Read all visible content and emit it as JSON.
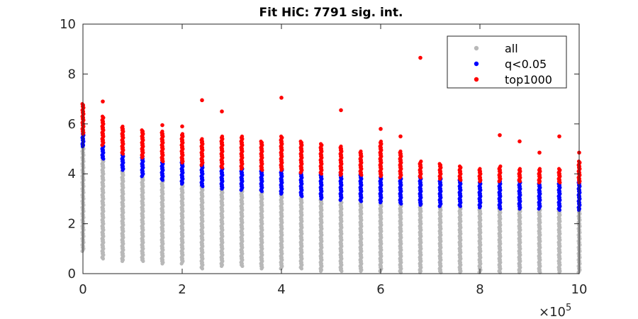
{
  "chart_data": {
    "type": "scatter",
    "title": "Fit HiC: 7791 sig. int.",
    "xlabel": "",
    "ylabel": "",
    "xlim": [
      0,
      1000000
    ],
    "ylim": [
      0,
      10
    ],
    "x_ticks": [
      0,
      200000,
      400000,
      600000,
      800000,
      1000000
    ],
    "x_tick_labels": [
      "0",
      "2",
      "4",
      "6",
      "8",
      "10"
    ],
    "y_ticks": [
      0,
      2,
      4,
      6,
      8,
      10
    ],
    "y_tick_labels": [
      "0",
      "2",
      "4",
      "6",
      "8",
      "10"
    ],
    "x_multiplier_base": "×10",
    "x_multiplier_exp": "5",
    "grid": false,
    "legend_position": "top-right",
    "series": [
      {
        "name": "all",
        "color": "#b8b8b8",
        "columns": [
          {
            "x": 0,
            "ymin": 0.9,
            "ymax": 5.2
          },
          {
            "x": 40000,
            "ymin": 0.6,
            "ymax": 4.6
          },
          {
            "x": 80000,
            "ymin": 0.5,
            "ymax": 4.2
          },
          {
            "x": 120000,
            "ymin": 0.5,
            "ymax": 3.9
          },
          {
            "x": 160000,
            "ymin": 0.4,
            "ymax": 3.8
          },
          {
            "x": 200000,
            "ymin": 0.4,
            "ymax": 3.6
          },
          {
            "x": 240000,
            "ymin": 0.2,
            "ymax": 3.5
          },
          {
            "x": 280000,
            "ymin": 0.3,
            "ymax": 3.4
          },
          {
            "x": 320000,
            "ymin": 0.3,
            "ymax": 3.4
          },
          {
            "x": 360000,
            "ymin": 0.2,
            "ymax": 3.3
          },
          {
            "x": 400000,
            "ymin": 0.2,
            "ymax": 3.2
          },
          {
            "x": 440000,
            "ymin": 0.2,
            "ymax": 3.1
          },
          {
            "x": 480000,
            "ymin": 0.1,
            "ymax": 3.0
          },
          {
            "x": 520000,
            "ymin": 0.1,
            "ymax": 2.9
          },
          {
            "x": 560000,
            "ymin": 0.1,
            "ymax": 2.9
          },
          {
            "x": 600000,
            "ymin": 0.1,
            "ymax": 2.8
          },
          {
            "x": 640000,
            "ymin": 0.05,
            "ymax": 2.8
          },
          {
            "x": 680000,
            "ymin": 0.05,
            "ymax": 2.8
          },
          {
            "x": 720000,
            "ymin": 0.05,
            "ymax": 2.7
          },
          {
            "x": 760000,
            "ymin": 0.05,
            "ymax": 2.7
          },
          {
            "x": 800000,
            "ymin": 0.05,
            "ymax": 2.6
          },
          {
            "x": 840000,
            "ymin": 0.05,
            "ymax": 2.6
          },
          {
            "x": 880000,
            "ymin": 0.05,
            "ymax": 2.6
          },
          {
            "x": 920000,
            "ymin": 0.05,
            "ymax": 2.6
          },
          {
            "x": 960000,
            "ymin": 0.05,
            "ymax": 2.5
          },
          {
            "x": 1000000,
            "ymin": 0.05,
            "ymax": 2.5
          }
        ]
      },
      {
        "name": "q<0.05",
        "color": "#0000ff",
        "columns": [
          {
            "x": 0,
            "ymin": 5.1,
            "ymax": 5.6
          },
          {
            "x": 40000,
            "ymin": 4.6,
            "ymax": 5.15
          },
          {
            "x": 80000,
            "ymin": 4.15,
            "ymax": 4.8
          },
          {
            "x": 120000,
            "ymin": 3.9,
            "ymax": 4.65
          },
          {
            "x": 160000,
            "ymin": 3.75,
            "ymax": 4.5
          },
          {
            "x": 200000,
            "ymin": 3.6,
            "ymax": 4.45
          },
          {
            "x": 240000,
            "ymin": 3.5,
            "ymax": 4.35
          },
          {
            "x": 280000,
            "ymin": 3.4,
            "ymax": 4.25
          },
          {
            "x": 320000,
            "ymin": 3.35,
            "ymax": 4.2
          },
          {
            "x": 360000,
            "ymin": 3.3,
            "ymax": 4.15
          },
          {
            "x": 400000,
            "ymin": 3.2,
            "ymax": 4.15
          },
          {
            "x": 440000,
            "ymin": 3.1,
            "ymax": 4.05
          },
          {
            "x": 480000,
            "ymin": 3.0,
            "ymax": 4.0
          },
          {
            "x": 520000,
            "ymin": 2.95,
            "ymax": 3.95
          },
          {
            "x": 560000,
            "ymin": 2.9,
            "ymax": 3.95
          },
          {
            "x": 600000,
            "ymin": 2.85,
            "ymax": 3.9
          },
          {
            "x": 640000,
            "ymin": 2.8,
            "ymax": 3.85
          },
          {
            "x": 680000,
            "ymin": 2.75,
            "ymax": 3.85
          },
          {
            "x": 720000,
            "ymin": 2.7,
            "ymax": 3.8
          },
          {
            "x": 760000,
            "ymin": 2.7,
            "ymax": 3.75
          },
          {
            "x": 800000,
            "ymin": 2.65,
            "ymax": 3.7
          },
          {
            "x": 840000,
            "ymin": 2.6,
            "ymax": 3.7
          },
          {
            "x": 880000,
            "ymin": 2.6,
            "ymax": 3.7
          },
          {
            "x": 920000,
            "ymin": 2.6,
            "ymax": 3.65
          },
          {
            "x": 960000,
            "ymin": 2.55,
            "ymax": 3.65
          },
          {
            "x": 1000000,
            "ymin": 2.55,
            "ymax": 3.65
          }
        ]
      },
      {
        "name": "top1000",
        "color": "#ff0000",
        "columns": [
          {
            "x": 0,
            "ymin": 5.6,
            "ymax": 6.8
          },
          {
            "x": 40000,
            "ymin": 5.15,
            "ymax": 6.3
          },
          {
            "x": 80000,
            "ymin": 4.8,
            "ymax": 5.9
          },
          {
            "x": 120000,
            "ymin": 4.65,
            "ymax": 5.75
          },
          {
            "x": 160000,
            "ymin": 4.5,
            "ymax": 5.7
          },
          {
            "x": 200000,
            "ymin": 4.45,
            "ymax": 5.6
          },
          {
            "x": 240000,
            "ymin": 4.35,
            "ymax": 5.4
          },
          {
            "x": 280000,
            "ymin": 4.25,
            "ymax": 5.5
          },
          {
            "x": 320000,
            "ymin": 4.2,
            "ymax": 5.5
          },
          {
            "x": 360000,
            "ymin": 4.15,
            "ymax": 5.3
          },
          {
            "x": 400000,
            "ymin": 4.15,
            "ymax": 5.5
          },
          {
            "x": 440000,
            "ymin": 4.05,
            "ymax": 5.3
          },
          {
            "x": 480000,
            "ymin": 4.0,
            "ymax": 5.2
          },
          {
            "x": 520000,
            "ymin": 3.95,
            "ymax": 5.1
          },
          {
            "x": 560000,
            "ymin": 3.95,
            "ymax": 4.9
          },
          {
            "x": 600000,
            "ymin": 3.9,
            "ymax": 5.3
          },
          {
            "x": 640000,
            "ymin": 3.85,
            "ymax": 4.9
          },
          {
            "x": 680000,
            "ymin": 3.85,
            "ymax": 4.5
          },
          {
            "x": 720000,
            "ymin": 3.8,
            "ymax": 4.4
          },
          {
            "x": 760000,
            "ymin": 3.75,
            "ymax": 4.3
          },
          {
            "x": 800000,
            "ymin": 3.7,
            "ymax": 4.2
          },
          {
            "x": 840000,
            "ymin": 3.7,
            "ymax": 4.3
          },
          {
            "x": 880000,
            "ymin": 3.7,
            "ymax": 4.2
          },
          {
            "x": 920000,
            "ymin": 3.65,
            "ymax": 4.2
          },
          {
            "x": 960000,
            "ymin": 3.65,
            "ymax": 4.2
          },
          {
            "x": 1000000,
            "ymin": 3.65,
            "ymax": 4.5
          }
        ],
        "outliers": [
          {
            "x": 40000,
            "y": 6.9
          },
          {
            "x": 240000,
            "y": 6.95
          },
          {
            "x": 280000,
            "y": 6.5
          },
          {
            "x": 400000,
            "y": 7.05
          },
          {
            "x": 520000,
            "y": 6.55
          },
          {
            "x": 680000,
            "y": 8.65
          },
          {
            "x": 840000,
            "y": 5.55
          },
          {
            "x": 880000,
            "y": 5.3
          },
          {
            "x": 960000,
            "y": 5.5
          },
          {
            "x": 920000,
            "y": 4.85
          },
          {
            "x": 1000000,
            "y": 4.85
          },
          {
            "x": 600000,
            "y": 5.8
          },
          {
            "x": 640000,
            "y": 5.5
          },
          {
            "x": 160000,
            "y": 5.95
          },
          {
            "x": 200000,
            "y": 5.9
          }
        ]
      }
    ]
  }
}
